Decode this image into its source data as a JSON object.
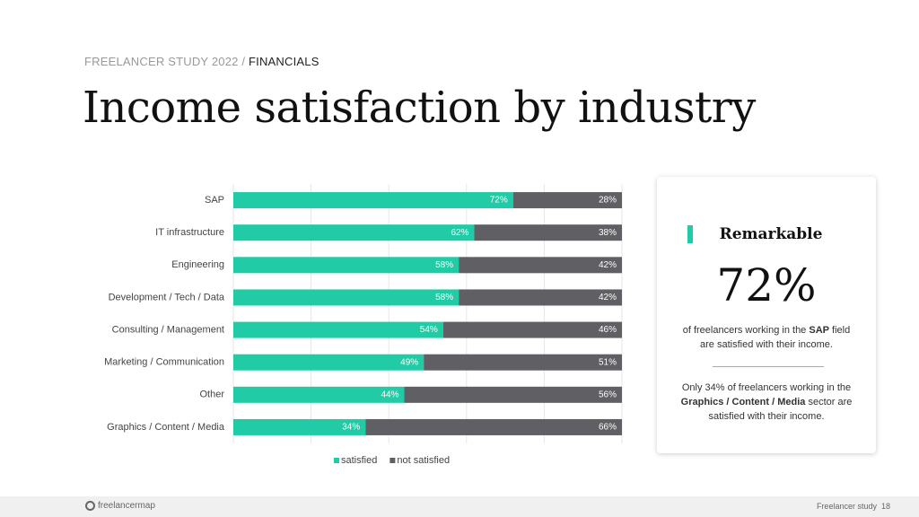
{
  "header": {
    "section": "FREELANCER STUDY 2022",
    "separator": "/",
    "page": "FINANCIALS"
  },
  "title": "Income satisfaction by industry",
  "chart_data": {
    "type": "bar",
    "orientation": "horizontal",
    "stacked": true,
    "categories": [
      "SAP",
      "IT infrastructure",
      "Engineering",
      "Development / Tech / Data",
      "Consulting / Management",
      "Marketing / Communication",
      "Other",
      "Graphics / Content / Media"
    ],
    "series": [
      {
        "name": "satisfied",
        "color": "#21cba5",
        "values": [
          72,
          62,
          58,
          58,
          54,
          49,
          44,
          34
        ],
        "value_labels": [
          "72%",
          "62%",
          "58%",
          "58%",
          "54%",
          "49%",
          "44%",
          "34%"
        ]
      },
      {
        "name": "not satisfied",
        "color": "#5f5f64",
        "values": [
          28,
          38,
          42,
          42,
          46,
          51,
          56,
          66
        ],
        "value_labels": [
          "28%",
          "38%",
          "42%",
          "42%",
          "46%",
          "51%",
          "56%",
          "66%"
        ]
      }
    ],
    "xlim": [
      0,
      100
    ],
    "xticks": [
      0,
      20,
      40,
      60,
      80,
      100
    ],
    "grid": true,
    "legend": "bottom"
  },
  "card": {
    "heading": "Remarkable",
    "figure": "72%",
    "text1": [
      "of freelancers working in the ",
      "SAP",
      " field are satisfied with their income."
    ],
    "text2": [
      "Only 34% of freelancers working in the ",
      "Graphics / Content / Media",
      " sector are satisfied with their income."
    ]
  },
  "footer": {
    "logo": "freelancermap",
    "label": "Freelancer study",
    "page": "18"
  }
}
